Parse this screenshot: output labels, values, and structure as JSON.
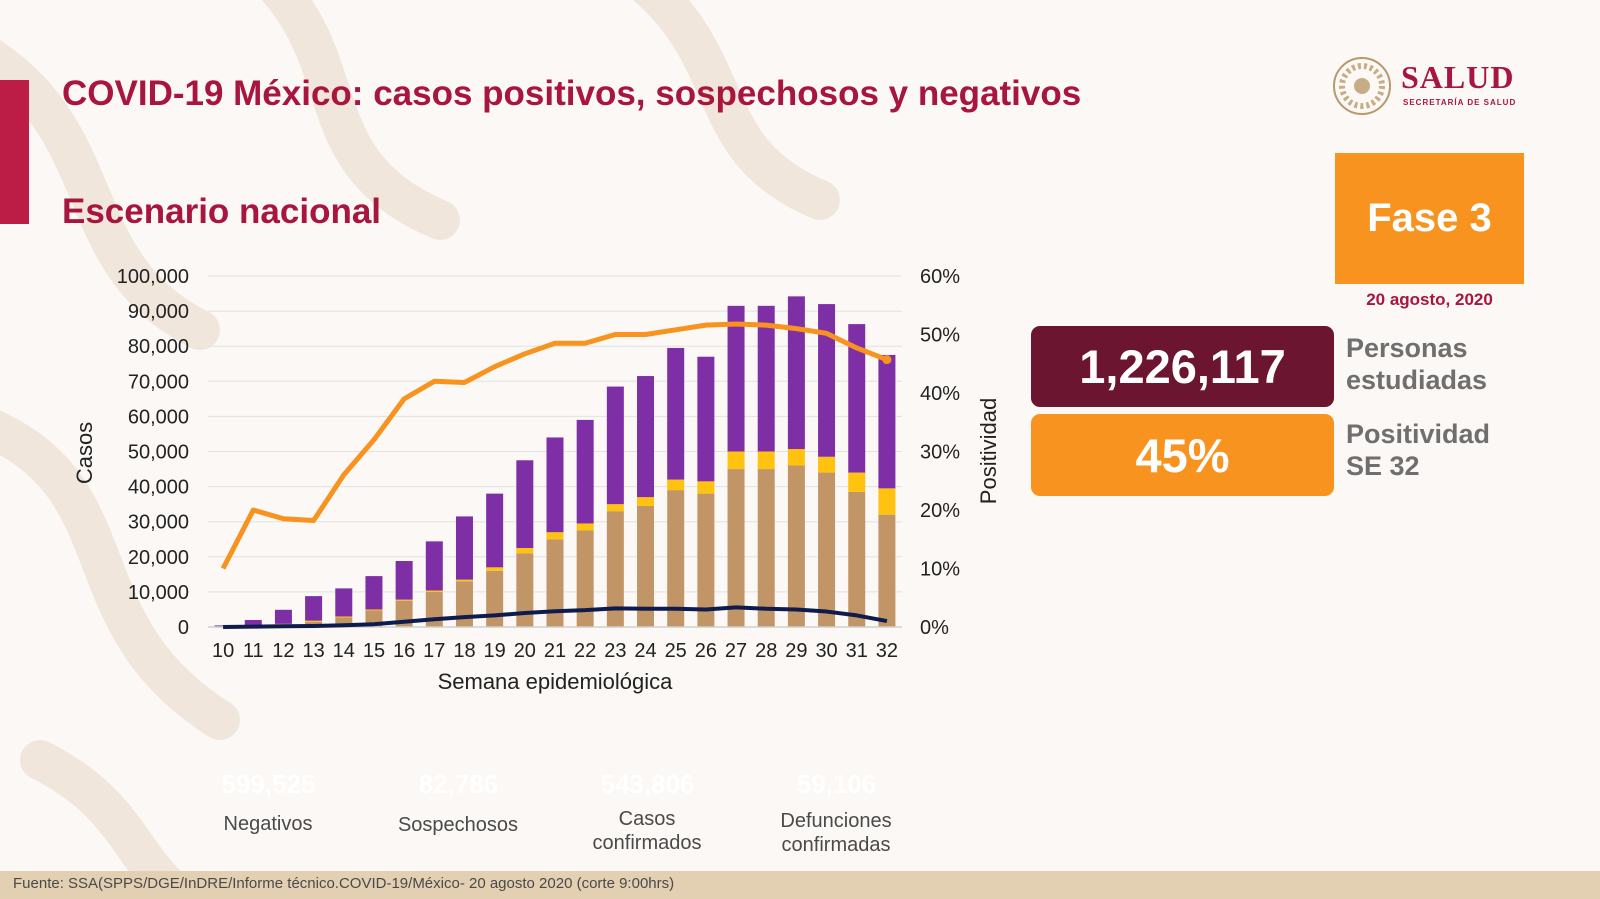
{
  "header": {
    "title": "COVID-19 México: casos positivos, sospechosos y negativos",
    "subtitle": "Escenario nacional"
  },
  "logo": {
    "word": "SALUD",
    "sub": "SECRETARÍA DE SALUD"
  },
  "phase": {
    "label": "Fase 3",
    "date": "20 agosto, 2020"
  },
  "stats": {
    "persons_value": "1,226,117",
    "persons_label_1": "Personas",
    "persons_label_2": "estudiadas",
    "positivity_value": "45%",
    "positivity_label_1": "Positividad",
    "positivity_label_2": "SE 32"
  },
  "legend": [
    {
      "value": "599,525",
      "label_1": "Negativos",
      "label_2": "",
      "color": "#7f2fa6"
    },
    {
      "value": "82,786",
      "label_1": "Sospechosos",
      "label_2": "",
      "color": "#ffc20e"
    },
    {
      "value": "543,806",
      "label_1": "Casos",
      "label_2": "confirmados",
      "color": "#c29566"
    },
    {
      "value": "59,106",
      "label_1": "Defunciones",
      "label_2": "confirmadas",
      "color": "#0e1b4d"
    }
  ],
  "footer": "Fuente: SSA(SPPS/DGE/InDRE/Informe técnico.COVID-19/México- 20 agosto 2020 (corte 9:00hrs)",
  "colors": {
    "title": "#a8153f",
    "negativos": "#7f2fa6",
    "sospechosos": "#ffc20e",
    "confirmados": "#c29566",
    "defunciones": "#0e1b4d",
    "positividad": "#f7931e"
  },
  "chart_data": {
    "type": "bar",
    "stacked": true,
    "xlabel": "Semana epidemiológica",
    "ylabel": "Casos",
    "y2label": "Positividad",
    "ylim": [
      0,
      100000
    ],
    "y2lim": [
      0,
      60
    ],
    "yticks": [
      "0",
      "10,000",
      "20,000",
      "30,000",
      "40,000",
      "50,000",
      "60,000",
      "70,000",
      "80,000",
      "90,000",
      "100,000"
    ],
    "y2ticks": [
      "0%",
      "10%",
      "20%",
      "30%",
      "40%",
      "50%",
      "60%"
    ],
    "grid": true,
    "categories": [
      "10",
      "11",
      "12",
      "13",
      "14",
      "15",
      "16",
      "17",
      "18",
      "19",
      "20",
      "21",
      "22",
      "23",
      "24",
      "25",
      "26",
      "27",
      "28",
      "29",
      "30",
      "31",
      "32"
    ],
    "series": [
      {
        "name": "Casos confirmados",
        "kind": "bar",
        "values": [
          100,
          300,
          700,
          1500,
          2700,
          4700,
          7500,
          10000,
          13000,
          16000,
          21000,
          25000,
          27500,
          33000,
          34500,
          39000,
          38000,
          45000,
          45000,
          46000,
          44000,
          38500,
          32000
        ]
      },
      {
        "name": "Sospechosos",
        "kind": "bar",
        "values": [
          50,
          100,
          200,
          300,
          300,
          300,
          300,
          400,
          500,
          1000,
          1500,
          2000,
          2000,
          2000,
          2500,
          3000,
          3500,
          5000,
          5000,
          4700,
          4500,
          5500,
          7500
        ]
      },
      {
        "name": "Negativos",
        "kind": "bar",
        "values": [
          300,
          1600,
          4000,
          7000,
          8000,
          9500,
          11000,
          14000,
          18000,
          21000,
          25000,
          27000,
          29500,
          33500,
          34500,
          37500,
          35500,
          41500,
          41500,
          43500,
          43500,
          42300,
          38000
        ]
      },
      {
        "name": "Defunciones",
        "kind": "line",
        "axis": "y",
        "values": [
          0,
          100,
          200,
          300,
          500,
          800,
          1500,
          2200,
          2800,
          3300,
          4000,
          4500,
          4800,
          5300,
          5200,
          5200,
          5000,
          5600,
          5200,
          5000,
          4400,
          3300,
          1700
        ]
      },
      {
        "name": "Positividad",
        "kind": "line",
        "axis": "y2",
        "values": [
          10,
          20,
          18.5,
          18.2,
          26,
          32,
          39,
          42,
          41.8,
          44.5,
          46.7,
          48.5,
          48.5,
          50,
          50,
          50.8,
          51.6,
          51.8,
          51.6,
          51,
          50.2,
          47.7,
          45.7
        ]
      }
    ]
  }
}
